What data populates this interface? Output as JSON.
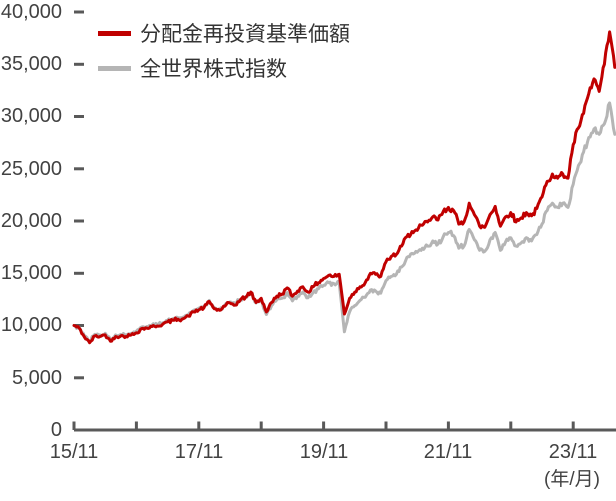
{
  "chart_data": {
    "type": "line",
    "title": "",
    "x_axis_unit_label": "(年/月)",
    "x_tick_labels": [
      "15/11",
      "17/11",
      "19/11",
      "21/11",
      "23/11"
    ],
    "x_minor_tick_interval": "1 year",
    "x_start": "2015/11",
    "x_end": "2024/07",
    "data_interval": "monthly",
    "ylim": [
      0,
      40000
    ],
    "y_ticks": [
      0,
      5000,
      10000,
      15000,
      20000,
      25000,
      30000,
      35000,
      40000
    ],
    "y_tick_labels": [
      "0",
      "5,000",
      "10,000",
      "15,000",
      "20,000",
      "25,000",
      "30,000",
      "35,000",
      "40,000"
    ],
    "grid": "off",
    "legend_position": "top-left-inside",
    "axis_color": "#595959",
    "text_color": "#424242",
    "series": [
      {
        "name": "分配金再投資基準価額",
        "color": "#c00000",
        "values": [
          10000,
          9750,
          8900,
          8350,
          9000,
          8950,
          9100,
          8500,
          8950,
          9000,
          8950,
          9100,
          9300,
          9700,
          9750,
          9900,
          9950,
          10100,
          10350,
          10500,
          10600,
          10650,
          10900,
          11300,
          11500,
          11700,
          12300,
          11600,
          11450,
          11850,
          12150,
          11950,
          12450,
          12700,
          13200,
          12200,
          12600,
          11300,
          12200,
          12800,
          13000,
          13600,
          12800,
          13300,
          13700,
          13200,
          13700,
          14100,
          14500,
          14800,
          14700,
          14900,
          11100,
          12600,
          13200,
          13700,
          14100,
          15000,
          14900,
          14700,
          16100,
          16600,
          16800,
          17600,
          18500,
          19000,
          19100,
          19600,
          19900,
          20400,
          20100,
          20900,
          21300,
          21000,
          19700,
          19900,
          21700,
          20600,
          19500,
          19400,
          20600,
          21400,
          19500,
          20400,
          20800,
          19900,
          20300,
          20800,
          20500,
          21200,
          22300,
          23800,
          24500,
          24100,
          24500,
          24100,
          27300,
          28900,
          30300,
          32200,
          33600,
          32400,
          35000,
          38100,
          34700
        ]
      },
      {
        "name": "全世界株式指数",
        "color": "#b5b5b5",
        "values": [
          10000,
          9800,
          9000,
          8500,
          9150,
          9100,
          9250,
          8650,
          9100,
          9150,
          9100,
          9250,
          9450,
          9850,
          9900,
          10050,
          10100,
          10250,
          10500,
          10650,
          10750,
          10800,
          11050,
          11450,
          11650,
          11850,
          12400,
          11700,
          11550,
          11950,
          12250,
          12050,
          12500,
          12750,
          13200,
          12150,
          12500,
          11050,
          11900,
          12450,
          12600,
          13150,
          12350,
          12800,
          13200,
          12650,
          13150,
          13500,
          13850,
          14100,
          14000,
          14100,
          9400,
          11300,
          11900,
          12400,
          12700,
          13400,
          13300,
          13100,
          14300,
          14700,
          14900,
          15600,
          16500,
          16900,
          17000,
          17400,
          17600,
          18100,
          17800,
          18500,
          18900,
          18600,
          17400,
          17600,
          19200,
          18200,
          17200,
          17100,
          18200,
          18900,
          17200,
          18000,
          18400,
          17600,
          17900,
          18400,
          18100,
          18700,
          19700,
          21000,
          21700,
          21300,
          21700,
          21300,
          23500,
          25300,
          26600,
          28000,
          28800,
          28300,
          29300,
          31300,
          28300
        ]
      }
    ]
  }
}
